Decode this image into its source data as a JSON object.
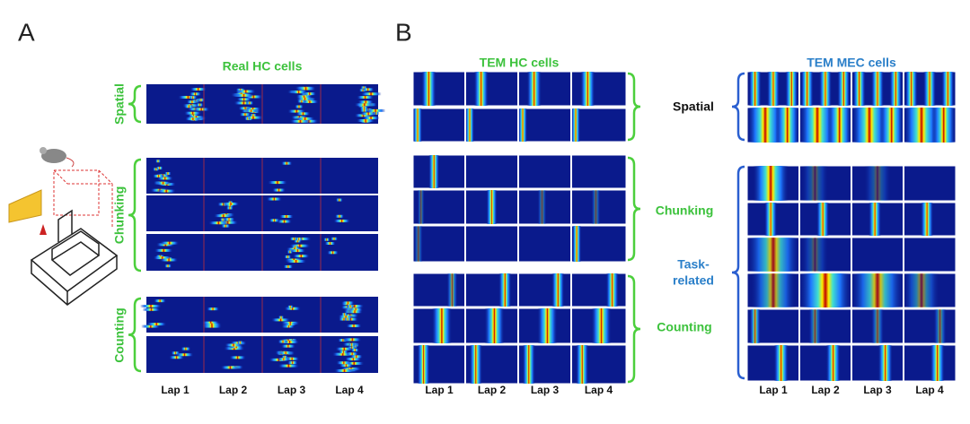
{
  "panel_a": {
    "label": "A",
    "title": "Real HC cells",
    "rows": [
      "Spatial",
      "Chunking",
      "Counting"
    ],
    "laps": [
      "Lap 1",
      "Lap 2",
      "Lap 3",
      "Lap 4"
    ]
  },
  "panel_b": {
    "label": "B",
    "hc": {
      "title": "TEM HC cells",
      "rows": [
        "Chunking",
        "Counting"
      ],
      "laps": [
        "Lap 1",
        "Lap 2",
        "Lap 3",
        "Lap 4"
      ]
    },
    "mec": {
      "title": "TEM MEC cells",
      "rows": [
        "Spatial"
      ],
      "task_related": [
        "Task-",
        "related"
      ],
      "laps": [
        "Lap 1",
        "Lap 2",
        "Lap 3",
        "Lap 4"
      ]
    }
  }
}
